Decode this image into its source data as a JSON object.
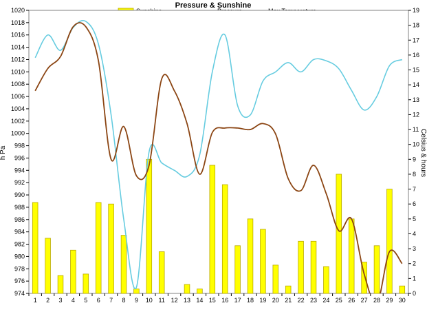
{
  "chart_data": {
    "type": "bar",
    "title": "Pressure & Sunshine",
    "ylabel_left": "h Pa",
    "ylabel_right": "Celsius & hours",
    "categories": [
      "1",
      "2",
      "3",
      "4",
      "5",
      "6",
      "7",
      "8",
      "9",
      "10",
      "11",
      "12",
      "13",
      "14",
      "15",
      "16",
      "17",
      "18",
      "19",
      "20",
      "21",
      "22",
      "23",
      "24",
      "25",
      "26",
      "27",
      "28",
      "29",
      "30"
    ],
    "y_left": {
      "min": 974,
      "max": 1020,
      "step": 2
    },
    "y_right": {
      "min": 0,
      "max": 19,
      "step": 1
    },
    "grid": false,
    "legend_position": "top",
    "series": [
      {
        "name": "Sunshine",
        "kind": "bar",
        "axis": "right",
        "color": "#FFFF00",
        "values": [
          6.1,
          3.7,
          1.2,
          2.9,
          1.3,
          6.1,
          6.0,
          3.9,
          0.3,
          9.0,
          2.8,
          0,
          0.6,
          0.3,
          8.6,
          7.3,
          3.2,
          5.0,
          4.3,
          1.9,
          0.5,
          3.5,
          3.5,
          1.8,
          8.0,
          5.0,
          2.1,
          3.2,
          7.0,
          0.5
        ]
      },
      {
        "name": "Pressure",
        "kind": "line",
        "axis": "left",
        "color": "#66CCE0",
        "values": [
          1012.3,
          1016.0,
          1013.5,
          1017.2,
          1018.2,
          1014.5,
          1003.0,
          986.0,
          975.0,
          997.0,
          995.2,
          994.0,
          993.0,
          996.5,
          1010.0,
          1016.0,
          1004.5,
          1003.0,
          1008.5,
          1010.0,
          1011.5,
          1010.0,
          1012.0,
          1011.8,
          1010.5,
          1007.0,
          1003.8,
          1006.0,
          1011.0,
          1012.0
        ]
      },
      {
        "name": "Max Temperature",
        "kind": "line",
        "axis": "right",
        "color": "#8B4513",
        "values": [
          13.6,
          15.1,
          15.9,
          17.9,
          17.9,
          15.6,
          9.0,
          11.2,
          7.9,
          8.6,
          14.4,
          13.6,
          11.4,
          8.0,
          10.8,
          11.1,
          11.1,
          11.0,
          11.4,
          10.7,
          7.7,
          6.9,
          8.6,
          6.7,
          4.2,
          5.0,
          1.3,
          -0.7,
          2.8,
          2.0
        ]
      }
    ]
  }
}
